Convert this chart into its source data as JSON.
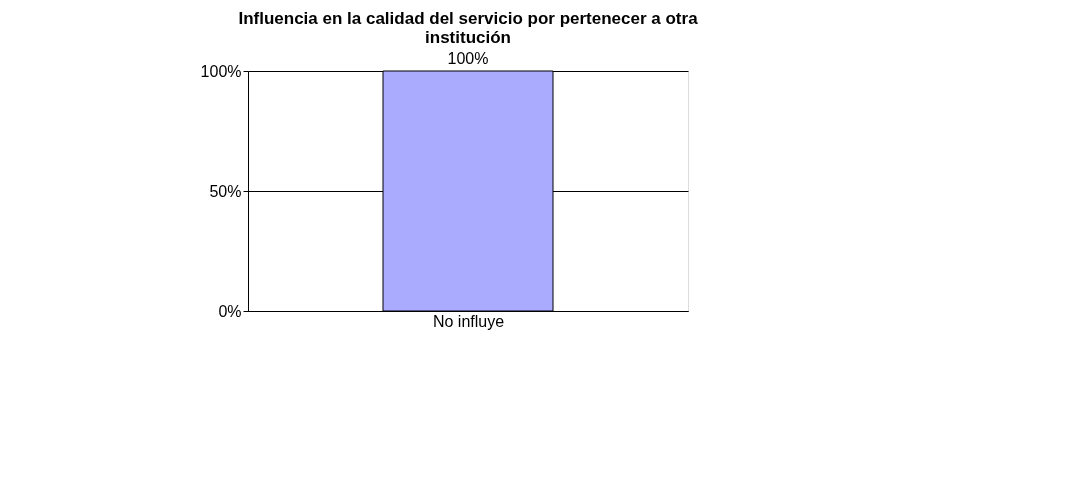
{
  "chart_data": {
    "type": "bar",
    "title": "Influencia en la calidad del servicio por pertenecer a otra institución",
    "categories": [
      "No influye"
    ],
    "series": [
      {
        "color": "#aaaaff",
        "values": [
          100
        ]
      }
    ],
    "value_labels": [
      "100%"
    ],
    "ylim": [
      0,
      100
    ],
    "yticks": [
      {
        "value": 0,
        "label": "0%"
      },
      {
        "value": 50,
        "label": "50%"
      },
      {
        "value": 100,
        "label": "100%"
      }
    ],
    "grid": "y"
  }
}
